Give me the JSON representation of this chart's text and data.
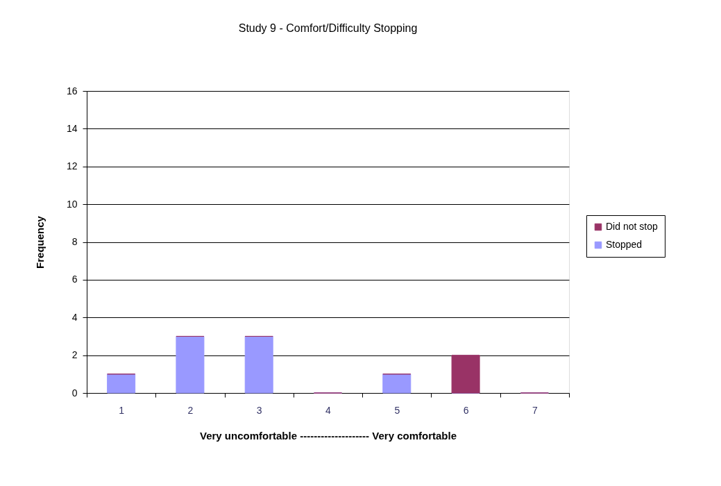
{
  "chart_data": {
    "type": "bar",
    "title": "Study 9 - Comfort/Difficulty Stopping",
    "xlabel": "Very uncomfortable -------------------- Very comfortable",
    "ylabel": "Frequency",
    "categories": [
      "1",
      "2",
      "3",
      "4",
      "5",
      "6",
      "7"
    ],
    "stacked": true,
    "series": [
      {
        "name": "Stopped",
        "color": "#9999ff",
        "values": [
          1,
          3,
          3,
          0,
          1,
          0,
          0
        ]
      },
      {
        "name": "Did not stop",
        "color": "#993366",
        "values": [
          0,
          0,
          0,
          0,
          0,
          2,
          0
        ]
      }
    ],
    "ylim": [
      0,
      16
    ],
    "yticks": [
      0,
      2,
      4,
      6,
      8,
      10,
      12,
      14,
      16
    ],
    "grid": "y",
    "legend": "right"
  }
}
